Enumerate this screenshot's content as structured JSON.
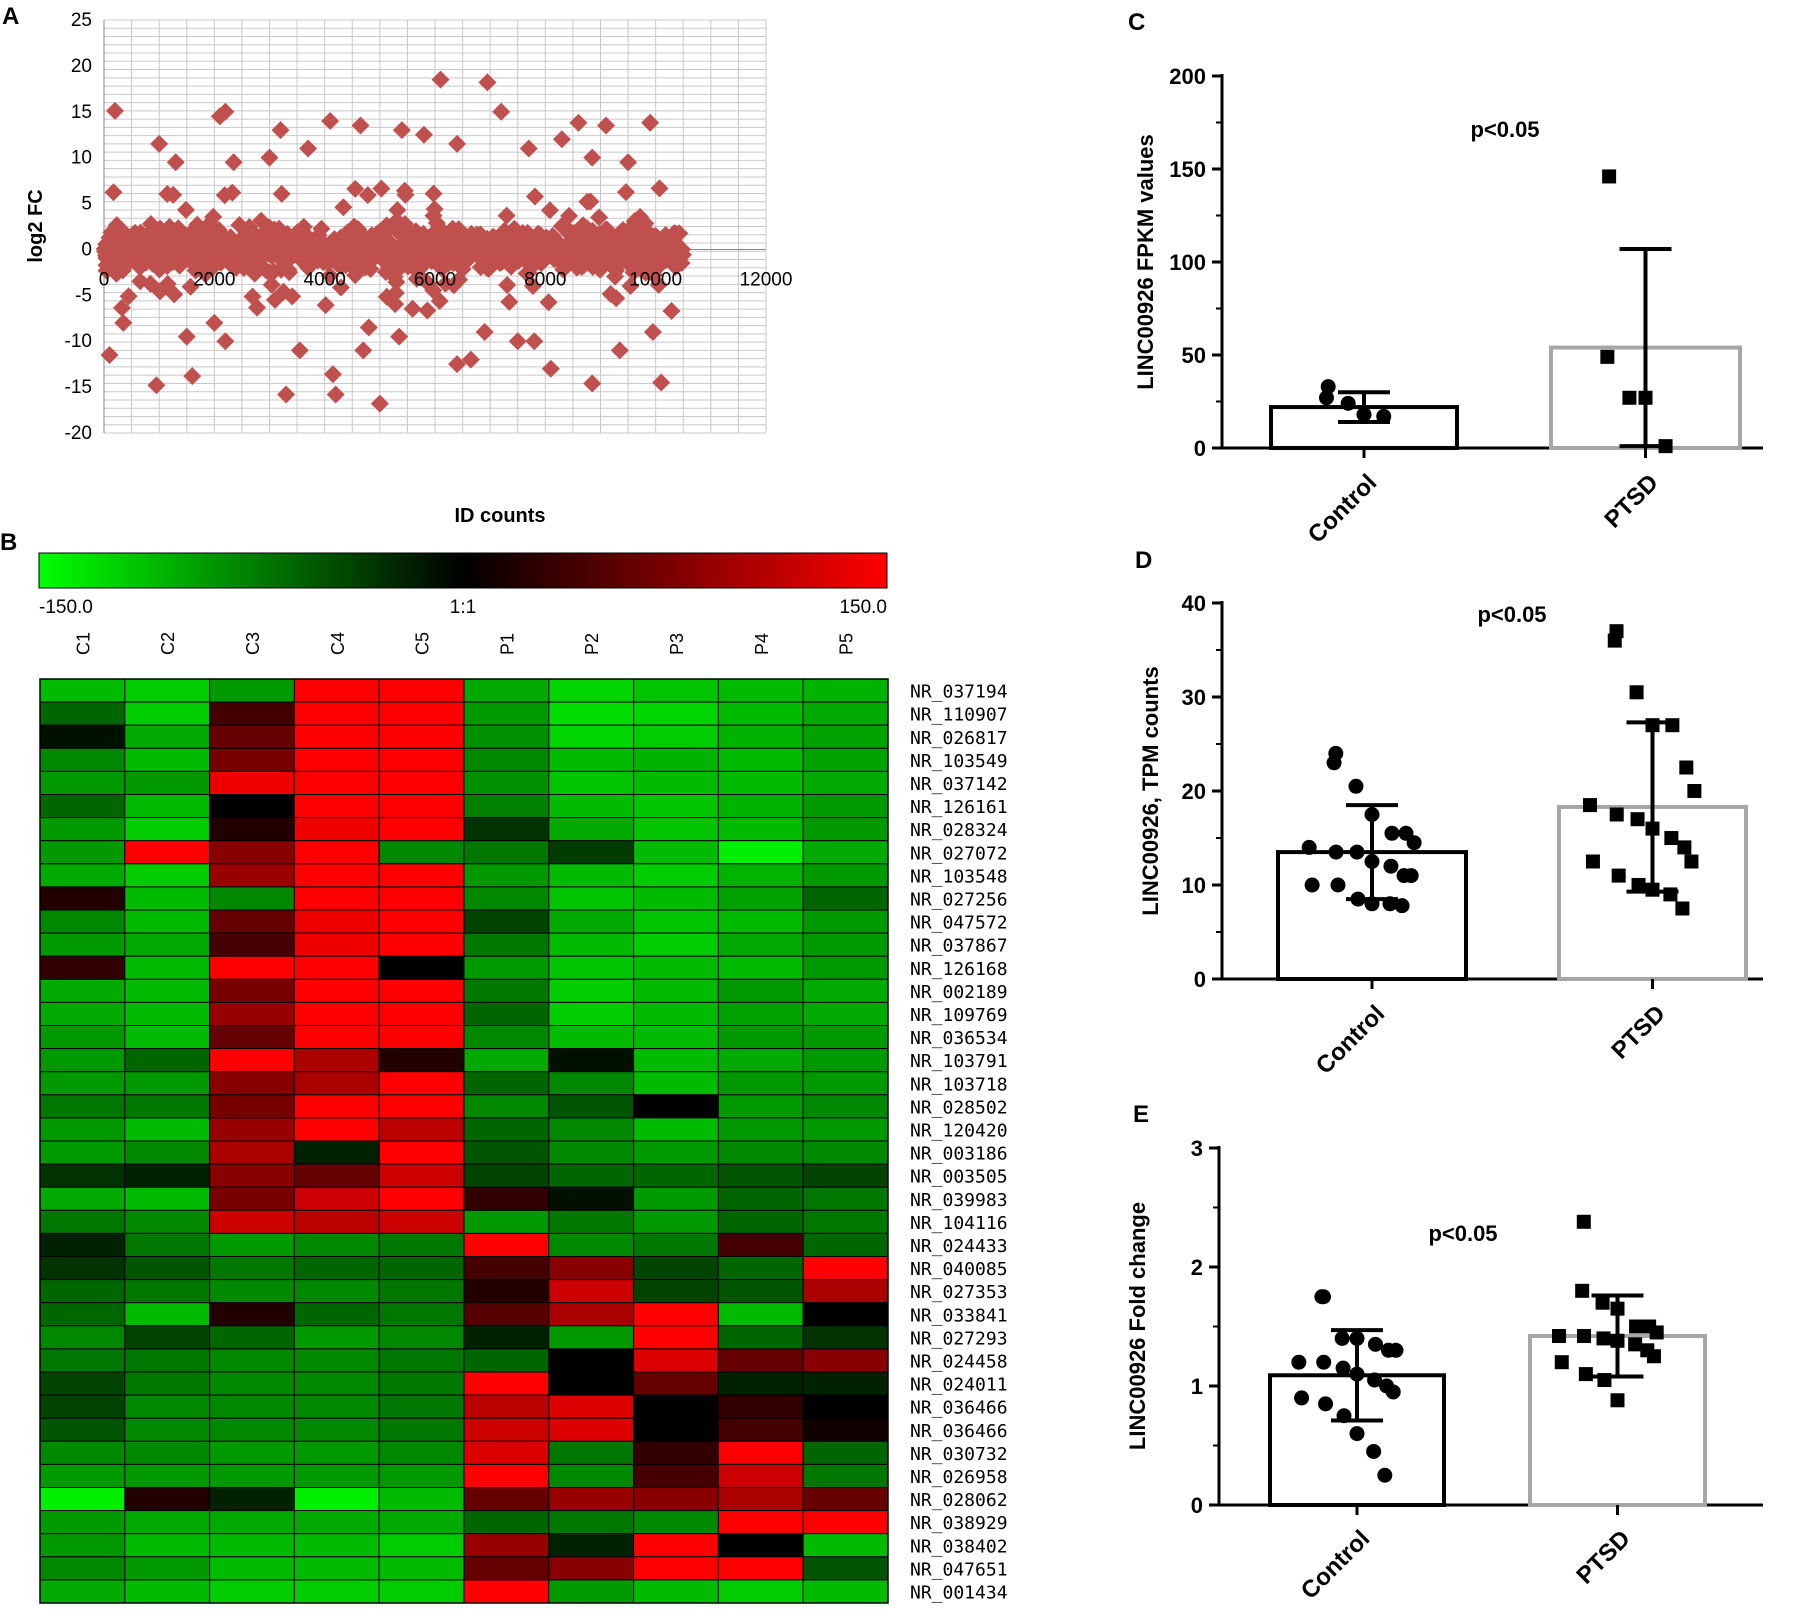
{
  "panels": {
    "a": "A",
    "b": "B",
    "c": "C",
    "d": "D",
    "e": "E"
  },
  "chart_data": [
    {
      "id": "A",
      "type": "scatter",
      "title": "",
      "xlabel": "ID counts",
      "ylabel": "log2 FC",
      "xlim": [
        0,
        12000
      ],
      "ylim": [
        -20,
        25
      ],
      "x_ticks": [
        "0",
        "2000",
        "4000",
        "6000",
        "8000",
        "10000",
        "12000"
      ],
      "y_ticks": [
        "25",
        "20",
        "15",
        "10",
        "5",
        "0",
        "-5",
        "-10",
        "-15",
        "-20"
      ],
      "grid": true,
      "marker_color": "#c0504d",
      "n_points_approx": 10600,
      "outliers": [
        {
          "x": 6100,
          "y": 18.5
        },
        {
          "x": 6950,
          "y": 18.2
        },
        {
          "x": 200,
          "y": 15.1
        },
        {
          "x": 2200,
          "y": 15.0
        },
        {
          "x": 7200,
          "y": 15.0
        },
        {
          "x": 2100,
          "y": 14.5
        },
        {
          "x": 4100,
          "y": 14.0
        },
        {
          "x": 4650,
          "y": 13.5
        },
        {
          "x": 8600,
          "y": 13.8
        },
        {
          "x": 9100,
          "y": 13.5
        },
        {
          "x": 9900,
          "y": 13.8
        },
        {
          "x": 3200,
          "y": 13.0
        },
        {
          "x": 5400,
          "y": 13.0
        },
        {
          "x": 8300,
          "y": 12.0
        },
        {
          "x": 1000,
          "y": 11.5
        },
        {
          "x": 3700,
          "y": 11.0
        },
        {
          "x": 7700,
          "y": 11.0
        },
        {
          "x": 5800,
          "y": 12.5
        },
        {
          "x": 6400,
          "y": 11.5
        },
        {
          "x": 1300,
          "y": 9.5
        },
        {
          "x": 2350,
          "y": 9.5
        },
        {
          "x": 3000,
          "y": 10.0
        },
        {
          "x": 9500,
          "y": 9.5
        },
        {
          "x": 8850,
          "y": 10.0
        },
        {
          "x": 350,
          "y": -8.0
        },
        {
          "x": 950,
          "y": -14.8
        },
        {
          "x": 1600,
          "y": -13.8
        },
        {
          "x": 2200,
          "y": -10.0
        },
        {
          "x": 3300,
          "y": -15.8
        },
        {
          "x": 3550,
          "y": -11.0
        },
        {
          "x": 4200,
          "y": -15.8
        },
        {
          "x": 4150,
          "y": -13.6
        },
        {
          "x": 4700,
          "y": -11.0
        },
        {
          "x": 5000,
          "y": -16.8
        },
        {
          "x": 6400,
          "y": -12.5
        },
        {
          "x": 6650,
          "y": -12.0
        },
        {
          "x": 8100,
          "y": -13.0
        },
        {
          "x": 8850,
          "y": -14.6
        },
        {
          "x": 9350,
          "y": -11.0
        },
        {
          "x": 10100,
          "y": -14.5
        },
        {
          "x": 100,
          "y": -11.5
        },
        {
          "x": 5350,
          "y": -9.5
        },
        {
          "x": 7500,
          "y": -10.0
        },
        {
          "x": 7800,
          "y": -10.0
        },
        {
          "x": 6900,
          "y": -9.0
        },
        {
          "x": 9950,
          "y": -9.0
        },
        {
          "x": 1500,
          "y": -9.5
        },
        {
          "x": 2000,
          "y": -8.0
        },
        {
          "x": 3100,
          "y": -5.5
        },
        {
          "x": 4800,
          "y": -8.5
        }
      ]
    },
    {
      "id": "B",
      "type": "heatmap",
      "colorbar": {
        "min_label": "-150.0",
        "mid_label": "1:1",
        "max_label": "150.0",
        "min": -150,
        "max": 150
      },
      "columns": [
        "C1",
        "C2",
        "C3",
        "C4",
        "C5",
        "P1",
        "P2",
        "P3",
        "P4",
        "P5"
      ],
      "rows": [
        "NR_037194",
        "NR_110907",
        "NR_026817",
        "NR_103549",
        "NR_037142",
        "NR_126161",
        "NR_028324",
        "NR_027072",
        "NR_103548",
        "NR_027256",
        "NR_047572",
        "NR_037867",
        "NR_126168",
        "NR_002189",
        "NR_109769",
        "NR_036534",
        "NR_103791",
        "NR_103718",
        "NR_028502",
        "NR_120420",
        "NR_003186",
        "NR_003505",
        "NR_039983",
        "NR_104116",
        "NR_024433",
        "NR_040085",
        "NR_027353",
        "NR_033841",
        "NR_027293",
        "NR_024458",
        "NR_024011",
        "NR_036466",
        "NR_036466",
        "NR_030732",
        "NR_026958",
        "NR_028062",
        "NR_038929",
        "NR_038402",
        "NR_047651",
        "NR_001434"
      ],
      "values": [
        [
          -110,
          -120,
          -90,
          150,
          150,
          -100,
          -125,
          -115,
          -110,
          -105
        ],
        [
          -60,
          -120,
          40,
          150,
          150,
          -90,
          -130,
          -125,
          -110,
          -100
        ],
        [
          -10,
          -100,
          60,
          150,
          150,
          -85,
          -125,
          -120,
          -105,
          -95
        ],
        [
          -80,
          -110,
          70,
          150,
          150,
          -80,
          -110,
          -105,
          -110,
          -95
        ],
        [
          -90,
          -90,
          140,
          150,
          150,
          -85,
          -115,
          -110,
          -110,
          -100
        ],
        [
          -60,
          -110,
          0,
          150,
          150,
          -75,
          -110,
          -115,
          -105,
          -90
        ],
        [
          -90,
          -120,
          20,
          140,
          150,
          -30,
          -100,
          -115,
          -110,
          -90
        ],
        [
          -90,
          150,
          80,
          150,
          -80,
          -70,
          -35,
          -110,
          -140,
          -100
        ],
        [
          -100,
          -120,
          90,
          150,
          150,
          -90,
          -110,
          -120,
          -105,
          -90
        ],
        [
          20,
          -110,
          -80,
          150,
          150,
          -80,
          -115,
          -110,
          -95,
          -60
        ],
        [
          -80,
          -110,
          60,
          140,
          150,
          -40,
          -100,
          -115,
          -110,
          -90
        ],
        [
          -90,
          -100,
          40,
          140,
          150,
          -70,
          -110,
          -120,
          -100,
          -90
        ],
        [
          30,
          -110,
          150,
          150,
          0,
          -90,
          -115,
          -110,
          -110,
          -90
        ],
        [
          -100,
          -110,
          70,
          150,
          150,
          -70,
          -120,
          -110,
          -90,
          -100
        ],
        [
          -100,
          -110,
          90,
          150,
          150,
          -60,
          -120,
          -110,
          -95,
          -100
        ],
        [
          -90,
          -110,
          60,
          150,
          150,
          -80,
          -110,
          -110,
          -90,
          -90
        ],
        [
          -90,
          -60,
          150,
          100,
          20,
          -100,
          -10,
          -110,
          -100,
          -90
        ],
        [
          -90,
          -90,
          80,
          100,
          150,
          -60,
          -80,
          -110,
          -90,
          -90
        ],
        [
          -70,
          -70,
          70,
          150,
          150,
          -80,
          -50,
          0,
          -90,
          -80
        ],
        [
          -90,
          -110,
          90,
          150,
          110,
          -60,
          -80,
          -110,
          -90,
          -90
        ],
        [
          -90,
          -80,
          100,
          -20,
          150,
          -50,
          -80,
          -90,
          -80,
          -80
        ],
        [
          -30,
          -20,
          80,
          60,
          120,
          -40,
          -60,
          -60,
          -50,
          -40
        ],
        [
          -100,
          -110,
          70,
          120,
          150,
          30,
          -10,
          -90,
          -60,
          -70
        ],
        [
          -70,
          -80,
          120,
          110,
          120,
          -90,
          -70,
          -90,
          -60,
          -70
        ],
        [
          -20,
          -70,
          -90,
          -80,
          -70,
          150,
          -80,
          -70,
          40,
          -60
        ],
        [
          -30,
          -50,
          -70,
          -60,
          -60,
          40,
          80,
          -40,
          -60,
          150
        ],
        [
          -60,
          -70,
          -80,
          -80,
          -70,
          20,
          120,
          -40,
          -50,
          100
        ],
        [
          -60,
          -110,
          20,
          -60,
          -70,
          50,
          100,
          150,
          -110,
          0
        ],
        [
          -80,
          -40,
          -60,
          -90,
          -80,
          -20,
          -90,
          150,
          -60,
          -30
        ],
        [
          -70,
          -70,
          -80,
          -80,
          -70,
          -60,
          0,
          130,
          60,
          80
        ],
        [
          -40,
          -70,
          -80,
          -80,
          -70,
          150,
          0,
          60,
          -20,
          -20
        ],
        [
          -40,
          -80,
          -80,
          -80,
          -70,
          110,
          130,
          0,
          30,
          0
        ],
        [
          -50,
          -80,
          -80,
          -80,
          -70,
          120,
          130,
          0,
          40,
          10
        ],
        [
          -80,
          -80,
          -90,
          -90,
          -80,
          130,
          -70,
          30,
          150,
          -60
        ],
        [
          -90,
          -90,
          -90,
          -90,
          -90,
          150,
          -80,
          40,
          120,
          -70
        ],
        [
          -140,
          20,
          -20,
          -140,
          -110,
          60,
          90,
          80,
          100,
          60
        ],
        [
          -90,
          -100,
          -100,
          -100,
          -100,
          -60,
          -70,
          -80,
          150,
          150
        ],
        [
          -90,
          -110,
          -110,
          -110,
          -120,
          90,
          -20,
          150,
          0,
          -110
        ],
        [
          -80,
          -90,
          -110,
          -110,
          -110,
          60,
          80,
          150,
          150,
          -50
        ],
        [
          -100,
          -110,
          -120,
          -120,
          -120,
          150,
          -90,
          -110,
          -120,
          -110
        ]
      ]
    },
    {
      "id": "C",
      "type": "bar",
      "ylabel": "LINC00926 FPKM values",
      "ylim": [
        0,
        200
      ],
      "y_ticks": [
        "200",
        "150",
        "100",
        "50",
        "0"
      ],
      "categories": [
        "Control",
        "PTSD"
      ],
      "values": [
        22,
        54
      ],
      "sd": [
        8,
        53
      ],
      "points": [
        [
          33,
          27,
          24,
          18,
          17
        ],
        [
          146,
          49,
          27,
          27,
          1
        ]
      ],
      "annotation": "p<0.05",
      "bar_colors": [
        "#000000",
        "#a6a6a6"
      ]
    },
    {
      "id": "D",
      "type": "bar",
      "ylabel": "LINC00926, TPM counts",
      "ylim": [
        0,
        40
      ],
      "y_ticks": [
        "40",
        "30",
        "20",
        "10",
        "0"
      ],
      "categories": [
        "Control",
        "PTSD"
      ],
      "values": [
        13.5,
        18.3
      ],
      "sd": [
        5,
        9
      ],
      "points": [
        [
          24,
          23,
          20.5,
          17.5,
          15.5,
          15.5,
          14.5,
          14,
          13.5,
          13.5,
          12.5,
          12,
          11,
          11,
          10,
          10,
          8.5,
          8,
          8,
          7.8
        ],
        [
          37,
          36,
          30.5,
          27,
          27,
          22.5,
          20,
          18.5,
          17.5,
          17,
          16,
          15,
          14,
          12.5,
          12.5,
          11,
          10,
          9.5,
          9,
          7.5
        ]
      ],
      "annotation": "p<0.05",
      "bar_colors": [
        "#000000",
        "#a6a6a6"
      ]
    },
    {
      "id": "E",
      "type": "bar",
      "ylabel": "LINC00926 Fold change",
      "ylim": [
        0,
        3
      ],
      "y_ticks": [
        "3",
        "2",
        "1",
        "0"
      ],
      "categories": [
        "Control",
        "PTSD"
      ],
      "values": [
        1.09,
        1.42
      ],
      "sd": [
        0.38,
        0.34
      ],
      "points": [
        [
          1.75,
          1.75,
          1.4,
          1.4,
          1.35,
          1.3,
          1.3,
          1.2,
          1.2,
          1.15,
          1.1,
          1.05,
          1.0,
          0.95,
          0.9,
          0.85,
          0.75,
          0.6,
          0.45,
          0.25
        ],
        [
          2.38,
          1.8,
          1.7,
          1.65,
          1.5,
          1.5,
          1.45,
          1.42,
          1.42,
          1.4,
          1.38,
          1.35,
          1.3,
          1.25,
          1.2,
          1.1,
          1.05,
          0.88
        ]
      ],
      "annotation": "p<0.05",
      "bar_colors": [
        "#000000",
        "#a6a6a6"
      ]
    }
  ]
}
